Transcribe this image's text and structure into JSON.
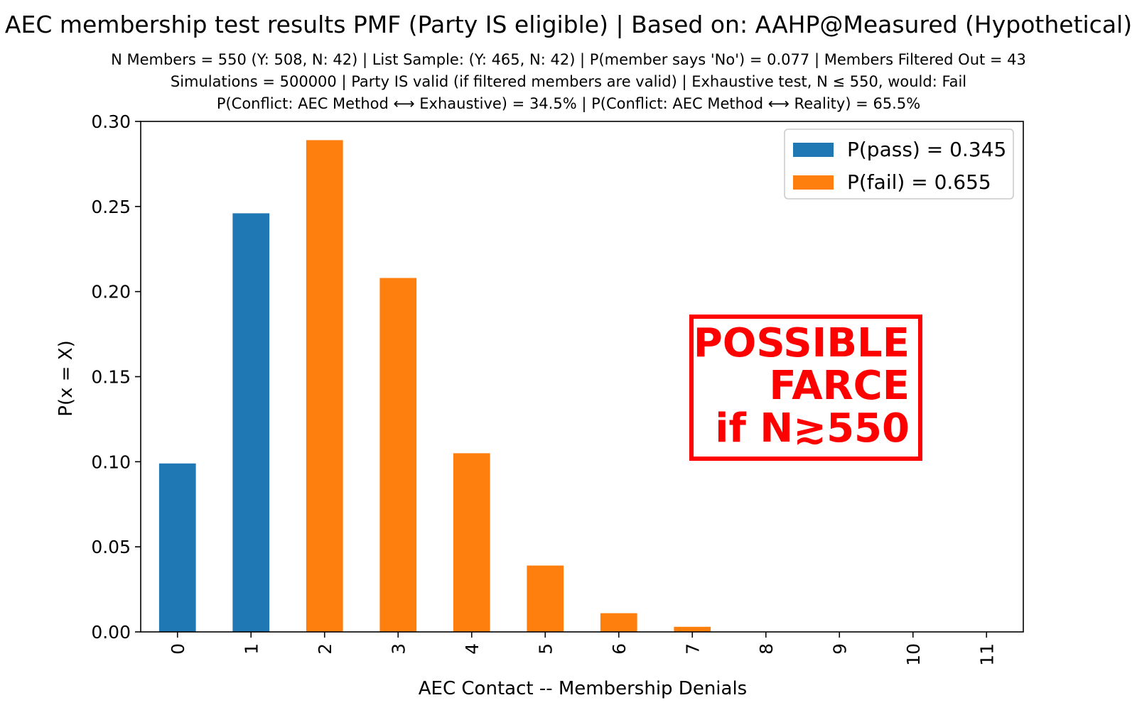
{
  "chart_data": {
    "type": "bar",
    "title": "AEC membership test results PMF (Party IS eligible) | Based on: AAHP@Measured (Hypothetical)",
    "subtitle_lines": [
      "N Members = 550 (Y: 508, N: 42) | List Sample: (Y: 465, N: 42) | P(member says 'No') = 0.077 | Members Filtered Out = 43",
      "Simulations = 500000 | Party IS valid (if filtered members are valid) | Exhaustive test, N ≤ 550, would: Fail",
      "P(Conflict: AEC Method ⟷ Exhaustive) = 34.5% | P(Conflict: AEC Method ⟷ Reality) = 65.5%"
    ],
    "xlabel": "AEC Contact -- Membership Denials",
    "ylabel": "P(x = X)",
    "categories": [
      "0",
      "1",
      "2",
      "3",
      "4",
      "5",
      "6",
      "7",
      "8",
      "9",
      "10",
      "11"
    ],
    "values": [
      0.099,
      0.246,
      0.289,
      0.208,
      0.105,
      0.039,
      0.011,
      0.003,
      0.0,
      0.0,
      0.0,
      0.0
    ],
    "bar_series": [
      "pass",
      "pass",
      "fail",
      "fail",
      "fail",
      "fail",
      "fail",
      "fail",
      "fail",
      "fail",
      "fail",
      "fail"
    ],
    "ylim": [
      0,
      0.3
    ],
    "yticks": [
      "0.00",
      "0.05",
      "0.10",
      "0.15",
      "0.20",
      "0.25",
      "0.30"
    ],
    "grid": false,
    "legend_position": "top-right",
    "series": [
      {
        "key": "pass",
        "name": "P(pass) = 0.345",
        "color": "#1f77b4"
      },
      {
        "key": "fail",
        "name": "P(fail) = 0.655",
        "color": "#ff7f0e"
      }
    ],
    "annotation": {
      "lines": [
        "POSSIBLE",
        "FARCE",
        "if N≳550"
      ],
      "color": "#ff0000"
    }
  }
}
